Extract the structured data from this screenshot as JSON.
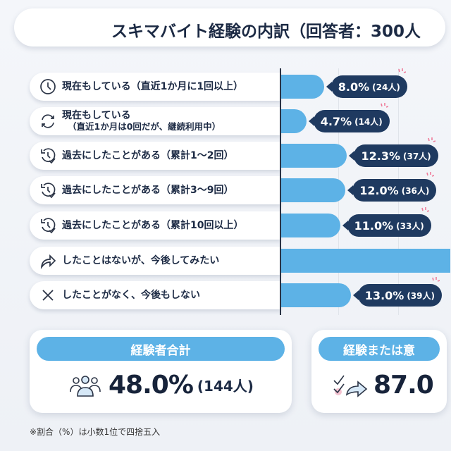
{
  "title": "スキマバイト経験の内訳（回答者：300人",
  "colors": {
    "bar": "#5db2e6",
    "bubble": "#1f3a60",
    "text": "#1c2a44",
    "accent_spark": "#ef7c9a"
  },
  "chart_data": {
    "type": "bar",
    "orientation": "horizontal",
    "title": "スキマバイト経験の内訳（回答者：300人",
    "categories": [
      {
        "icon": "clock-icon",
        "label": "現在もしている（直近1か月に1回以上）",
        "sub": ""
      },
      {
        "icon": "refresh-icon",
        "label": "現在もしている",
        "sub": "（直近1か月は0回だが、継続利用中）"
      },
      {
        "icon": "history-check-icon",
        "label": "過去にしたことがある（累計1〜2回）",
        "sub": ""
      },
      {
        "icon": "history-check-icon",
        "label": "過去にしたことがある（累計3〜9回）",
        "sub": ""
      },
      {
        "icon": "history-check-icon",
        "label": "過去にしたことがある（累計10回以上）",
        "sub": ""
      },
      {
        "icon": "share-arrow-icon",
        "label": "したことはないが、今後してみたい",
        "sub": ""
      },
      {
        "icon": "x-icon",
        "label": "したことがなく、今後もしない",
        "sub": ""
      }
    ],
    "values": [
      8.0,
      4.7,
      12.3,
      12.0,
      11.0,
      39.0,
      13.0
    ],
    "data_labels": [
      {
        "pct": "8.0%",
        "count": "(24人)"
      },
      {
        "pct": "4.7%",
        "count": "(14人)"
      },
      {
        "pct": "12.3%",
        "count": "(37人)"
      },
      {
        "pct": "12.0%",
        "count": "(36人)"
      },
      {
        "pct": "11.0%",
        "count": "(33人)"
      },
      null,
      {
        "pct": "13.0%",
        "count": "(39人)"
      }
    ],
    "unit": "%",
    "grid": true
  },
  "summary": {
    "card1": {
      "header": "経験者合計",
      "icon": "people-icon",
      "value": "48.0%",
      "count": "(144人)"
    },
    "card2": {
      "header": "経験または意",
      "icon": "check-arrow-icon",
      "value": "87.0"
    }
  },
  "footnote": "※割合（%）は小数1位で四捨五入"
}
